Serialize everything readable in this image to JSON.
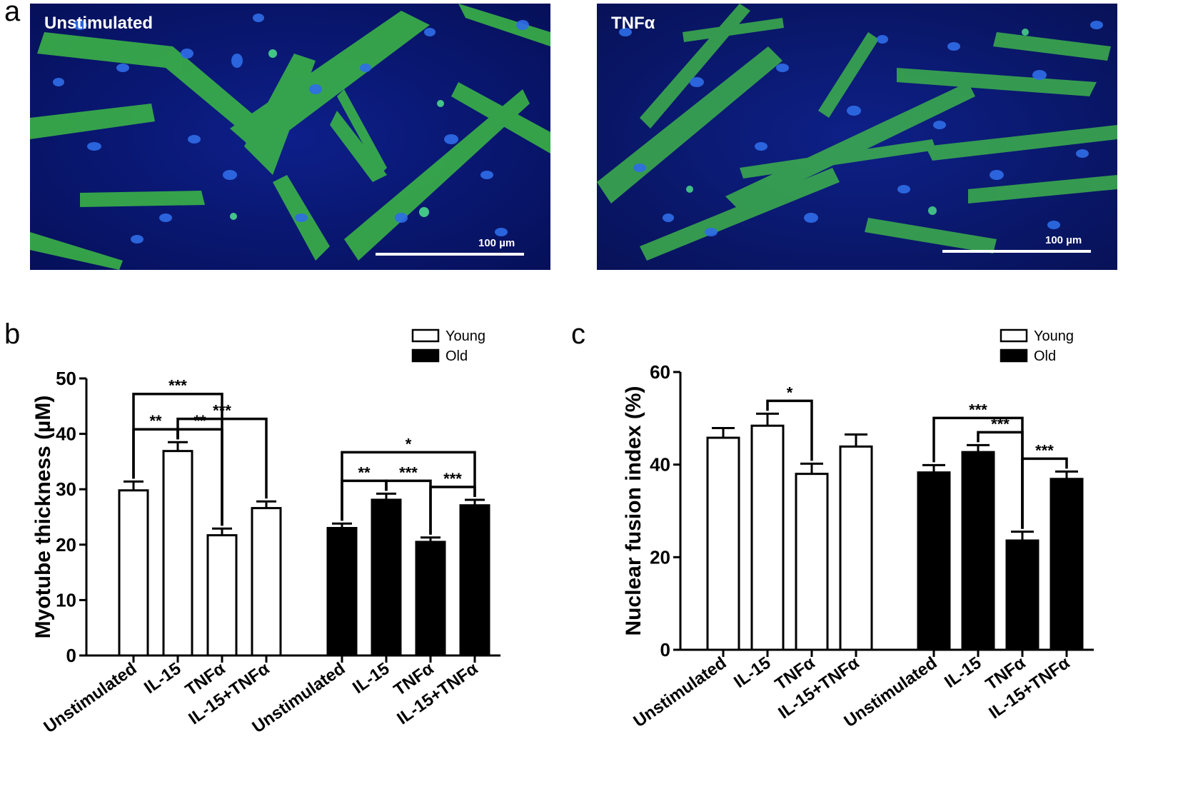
{
  "panels": {
    "a": {
      "letter": "a",
      "images": [
        {
          "label": "Unstimulated",
          "scale_label": "100 µm"
        },
        {
          "label": "TNFα",
          "scale_label": "100 µm"
        }
      ]
    },
    "b": {
      "letter": "b"
    },
    "c": {
      "letter": "c"
    }
  },
  "colors": {
    "young": "#ffffff",
    "old": "#000000",
    "background": "#0a1a7a",
    "myotube": "#3ec43e",
    "nuclei": "#2a64e8"
  },
  "chart_data": [
    {
      "type": "bar",
      "panel": "b",
      "ylabel": "Myotube thickness (µM)",
      "ylim": [
        0,
        50
      ],
      "yticks": [
        0,
        10,
        20,
        30,
        40,
        50
      ],
      "categories": [
        "Unstimulated",
        "IL-15",
        "TNFα",
        "IL-15+TNFα"
      ],
      "legend": {
        "position": "top-right",
        "entries": [
          "Young",
          "Old"
        ]
      },
      "series": [
        {
          "name": "Young",
          "values": [
            29.8,
            36.9,
            21.7,
            26.6
          ],
          "errors": [
            1.6,
            1.6,
            1.2,
            1.2
          ]
        },
        {
          "name": "Old",
          "values": [
            23.0,
            28.1,
            20.5,
            27.1
          ],
          "errors": [
            0.8,
            1.1,
            0.8,
            1.0
          ]
        }
      ],
      "significance": [
        {
          "series": 0,
          "from": 0,
          "to": 2,
          "label": "***"
        },
        {
          "series": 0,
          "from": 0,
          "to": 1,
          "label": "**"
        },
        {
          "series": 0,
          "from": 1,
          "to": 2,
          "label": "**"
        },
        {
          "series": 0,
          "from": 1,
          "to": 3,
          "label": "***"
        },
        {
          "series": 1,
          "from": 0,
          "to": 3,
          "label": "*"
        },
        {
          "series": 1,
          "from": 0,
          "to": 1,
          "label": "**"
        },
        {
          "series": 1,
          "from": 1,
          "to": 2,
          "label": "***"
        },
        {
          "series": 1,
          "from": 2,
          "to": 3,
          "label": "***"
        }
      ]
    },
    {
      "type": "bar",
      "panel": "c",
      "ylabel": "Nuclear fusion index (%)",
      "ylim": [
        0,
        60
      ],
      "yticks": [
        0,
        20,
        40,
        60
      ],
      "categories": [
        "Unstimulated",
        "IL-15",
        "TNFα",
        "IL-15+TNFα"
      ],
      "legend": {
        "position": "top-right",
        "entries": [
          "Young",
          "Old"
        ]
      },
      "series": [
        {
          "name": "Young",
          "values": [
            45.8,
            48.4,
            38.0,
            43.9
          ],
          "errors": [
            2.1,
            2.6,
            2.2,
            2.6
          ]
        },
        {
          "name": "Old",
          "values": [
            38.3,
            42.7,
            23.6,
            36.9
          ],
          "errors": [
            1.6,
            1.5,
            1.9,
            1.6
          ]
        }
      ],
      "significance": [
        {
          "series": 0,
          "from": 1,
          "to": 2,
          "label": "*"
        },
        {
          "series": 1,
          "from": 0,
          "to": 2,
          "label": "***"
        },
        {
          "series": 1,
          "from": 1,
          "to": 2,
          "label": "***"
        },
        {
          "series": 1,
          "from": 2,
          "to": 3,
          "label": "***"
        }
      ]
    }
  ]
}
